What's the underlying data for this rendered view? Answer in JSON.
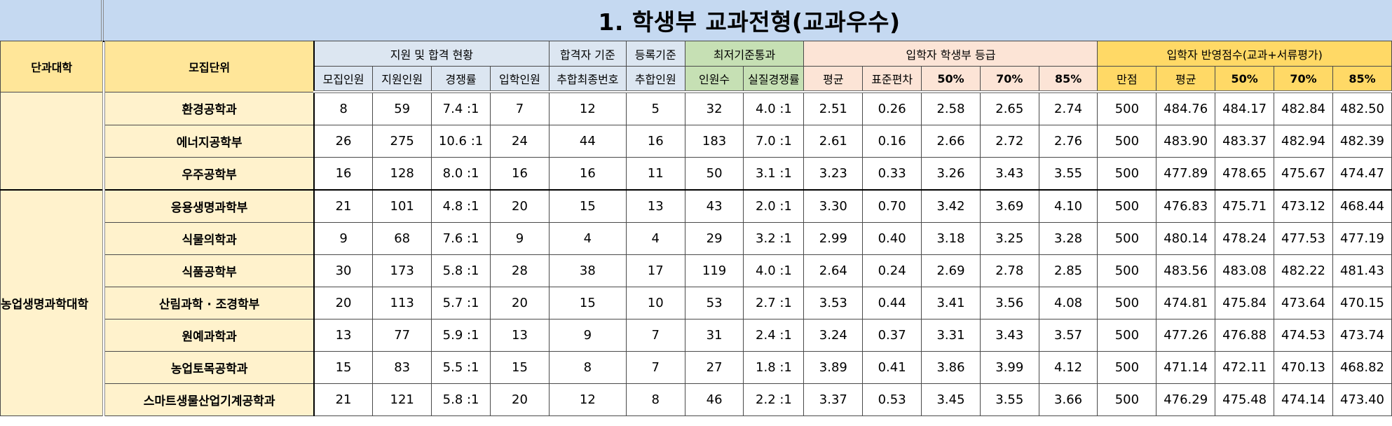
{
  "title": "1. 학생부 교과전형(교과우수)",
  "headers": {
    "college": "단과대학",
    "unit": "모집단위",
    "group_support": "지원 및 합격 현황",
    "group_pass_basis": "합격자 기준",
    "group_reg_basis": "등록기준",
    "group_min_pass": "최저기준통과",
    "group_grade": "입학자 학생부 등급",
    "group_score": "입학자 반영점수(교과+서류평가)",
    "sub": [
      "모집인원",
      "지원인원",
      "경쟁률",
      "입학인원",
      "추합최종번호",
      "추합인원",
      "인원수",
      "실질경쟁률",
      "평균",
      "표준편차",
      "50%",
      "70%",
      "85%",
      "만점",
      "평균",
      "50%",
      "70%",
      "85%"
    ]
  },
  "colleges": [
    {
      "name": ""
    },
    {
      "name": "농업생명과학대학"
    }
  ],
  "rows": [
    {
      "unit": "환경공학과",
      "cells": [
        "8",
        "59",
        "7.4 :1",
        "7",
        "12",
        "5",
        "32",
        "4.0 :1",
        "2.51",
        "0.26",
        "2.58",
        "2.65",
        "2.74",
        "500",
        "484.76",
        "484.17",
        "482.84",
        "482.50"
      ]
    },
    {
      "unit": "에너지공학부",
      "cells": [
        "26",
        "275",
        "10.6 :1",
        "24",
        "44",
        "16",
        "183",
        "7.0 :1",
        "2.61",
        "0.16",
        "2.66",
        "2.72",
        "2.76",
        "500",
        "483.90",
        "483.37",
        "482.94",
        "482.39"
      ]
    },
    {
      "unit": "우주공학부",
      "cells": [
        "16",
        "128",
        "8.0 :1",
        "16",
        "16",
        "11",
        "50",
        "3.1 :1",
        "3.23",
        "0.33",
        "3.26",
        "3.43",
        "3.55",
        "500",
        "477.89",
        "478.65",
        "475.67",
        "474.47"
      ]
    },
    {
      "unit": "응용생명과학부",
      "cells": [
        "21",
        "101",
        "4.8 :1",
        "20",
        "15",
        "13",
        "43",
        "2.0 :1",
        "3.30",
        "0.70",
        "3.42",
        "3.69",
        "4.10",
        "500",
        "476.83",
        "475.71",
        "473.12",
        "468.44"
      ]
    },
    {
      "unit": "식물의학과",
      "cells": [
        "9",
        "68",
        "7.6 :1",
        "9",
        "4",
        "4",
        "29",
        "3.2 :1",
        "2.99",
        "0.40",
        "3.18",
        "3.25",
        "3.28",
        "500",
        "480.14",
        "478.24",
        "477.53",
        "477.19"
      ]
    },
    {
      "unit": "식품공학부",
      "cells": [
        "30",
        "173",
        "5.8 :1",
        "28",
        "38",
        "17",
        "119",
        "4.0 :1",
        "2.64",
        "0.24",
        "2.69",
        "2.78",
        "2.85",
        "500",
        "483.56",
        "483.08",
        "482.22",
        "481.43"
      ]
    },
    {
      "unit": "산림과학 · 조경학부",
      "cells": [
        "20",
        "113",
        "5.7 :1",
        "20",
        "15",
        "10",
        "53",
        "2.7 :1",
        "3.53",
        "0.44",
        "3.41",
        "3.56",
        "4.08",
        "500",
        "474.81",
        "475.84",
        "473.64",
        "470.15"
      ]
    },
    {
      "unit": "원예과학과",
      "cells": [
        "13",
        "77",
        "5.9 :1",
        "13",
        "9",
        "7",
        "31",
        "2.4 :1",
        "3.24",
        "0.37",
        "3.31",
        "3.43",
        "3.57",
        "500",
        "477.26",
        "476.88",
        "474.53",
        "473.74"
      ]
    },
    {
      "unit": "농업토목공학과",
      "cells": [
        "15",
        "83",
        "5.5 :1",
        "15",
        "8",
        "7",
        "27",
        "1.8 :1",
        "3.89",
        "0.41",
        "3.86",
        "3.99",
        "4.12",
        "500",
        "471.14",
        "472.11",
        "470.13",
        "468.82"
      ]
    },
    {
      "unit": "스마트생물산업기계공학과",
      "cells": [
        "21",
        "121",
        "5.8 :1",
        "20",
        "12",
        "8",
        "46",
        "2.2 :1",
        "3.37",
        "0.53",
        "3.45",
        "3.55",
        "3.66",
        "500",
        "476.29",
        "475.48",
        "474.14",
        "473.40"
      ]
    }
  ]
}
